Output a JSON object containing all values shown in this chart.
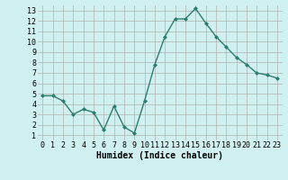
{
  "x": [
    0,
    1,
    2,
    3,
    4,
    5,
    6,
    7,
    8,
    9,
    10,
    11,
    12,
    13,
    14,
    15,
    16,
    17,
    18,
    19,
    20,
    21,
    22,
    23
  ],
  "y": [
    4.8,
    4.8,
    4.3,
    3.0,
    3.5,
    3.2,
    1.5,
    3.8,
    1.8,
    1.2,
    4.3,
    7.8,
    10.5,
    12.2,
    12.2,
    13.2,
    11.8,
    10.5,
    9.5,
    8.5,
    7.8,
    7.0,
    6.8,
    6.5
  ],
  "line_color": "#2d7d6e",
  "marker": "D",
  "marker_size": 2,
  "line_width": 1.0,
  "bg_color": "#cff0ee",
  "grid_color": "#b0b0b0",
  "xlabel": "Humidex (Indice chaleur)",
  "xlabel_fontsize": 7,
  "xlim": [
    -0.5,
    23.5
  ],
  "ylim": [
    0.5,
    13.5
  ],
  "xtick_labels": [
    "0",
    "1",
    "2",
    "3",
    "4",
    "5",
    "6",
    "7",
    "8",
    "9",
    "10",
    "11",
    "12",
    "13",
    "14",
    "15",
    "16",
    "17",
    "18",
    "19",
    "20",
    "21",
    "22",
    "23"
  ],
  "ytick_values": [
    1,
    2,
    3,
    4,
    5,
    6,
    7,
    8,
    9,
    10,
    11,
    12,
    13
  ],
  "tick_fontsize": 6
}
